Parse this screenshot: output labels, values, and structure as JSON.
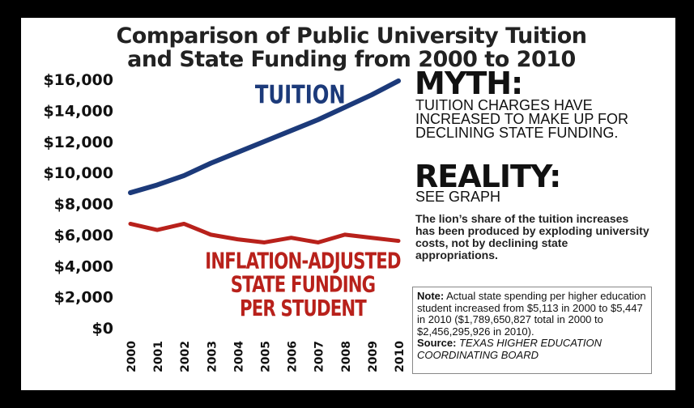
{
  "title_line1": "Comparison of Public University Tuition",
  "title_line2": "and State Funding from 2000 to 2010",
  "myth": {
    "heading": "MYTH:",
    "text": "TUITION CHARGES HAVE INCREASED TO MAKE UP FOR DECLINING STATE FUNDING."
  },
  "reality": {
    "heading": "REALITY:",
    "subheading": "SEE GRAPH",
    "text": "The lion’s share of the tuition increases has been produced by exploding university costs, not by declining state appropriations."
  },
  "note": {
    "label": "Note:",
    "text": "Actual state spending per higher education student increased from $5,113 in 2000 to $5,447 in 2010 ($1,789,650,827 total in 2000 to $2,456,295,926 in 2010).",
    "source_label": "Source:",
    "source_text": "TEXAS HIGHER EDUCATION COORDINATING BOARD"
  },
  "colors": {
    "tuition": "#1c3a7a",
    "state_funding": "#b8211b",
    "text": "#111111"
  },
  "chart_data": {
    "type": "line",
    "title": "Comparison of Public University Tuition and State Funding from 2000 to 2010",
    "x": [
      "2000",
      "2001",
      "2002",
      "2003",
      "2004",
      "2005",
      "2006",
      "2007",
      "2008",
      "2009",
      "2010"
    ],
    "ylim": [
      0,
      16000
    ],
    "y_ticks": [
      "$0",
      "$2,000",
      "$4,000",
      "$6,000",
      "$8,000",
      "$10,000",
      "$12,000",
      "$14,000",
      "$16,000"
    ],
    "y_tick_values": [
      0,
      2000,
      4000,
      6000,
      8000,
      10000,
      12000,
      14000,
      16000
    ],
    "grid": false,
    "series": [
      {
        "name": "TUITION",
        "label_lines": [
          "TUITION"
        ],
        "color": "#1c3a7a",
        "values": [
          8700,
          9200,
          9800,
          10600,
          11300,
          12000,
          12700,
          13400,
          14200,
          15000,
          15900
        ]
      },
      {
        "name": "INFLATION-ADJUSTED STATE FUNDING PER STUDENT",
        "label_lines": [
          "INFLATION-ADJUSTED",
          "STATE FUNDING",
          "PER STUDENT"
        ],
        "color": "#b8211b",
        "values": [
          6700,
          6300,
          6700,
          6000,
          5700,
          5500,
          5800,
          5500,
          6000,
          5800,
          5600
        ]
      }
    ]
  }
}
